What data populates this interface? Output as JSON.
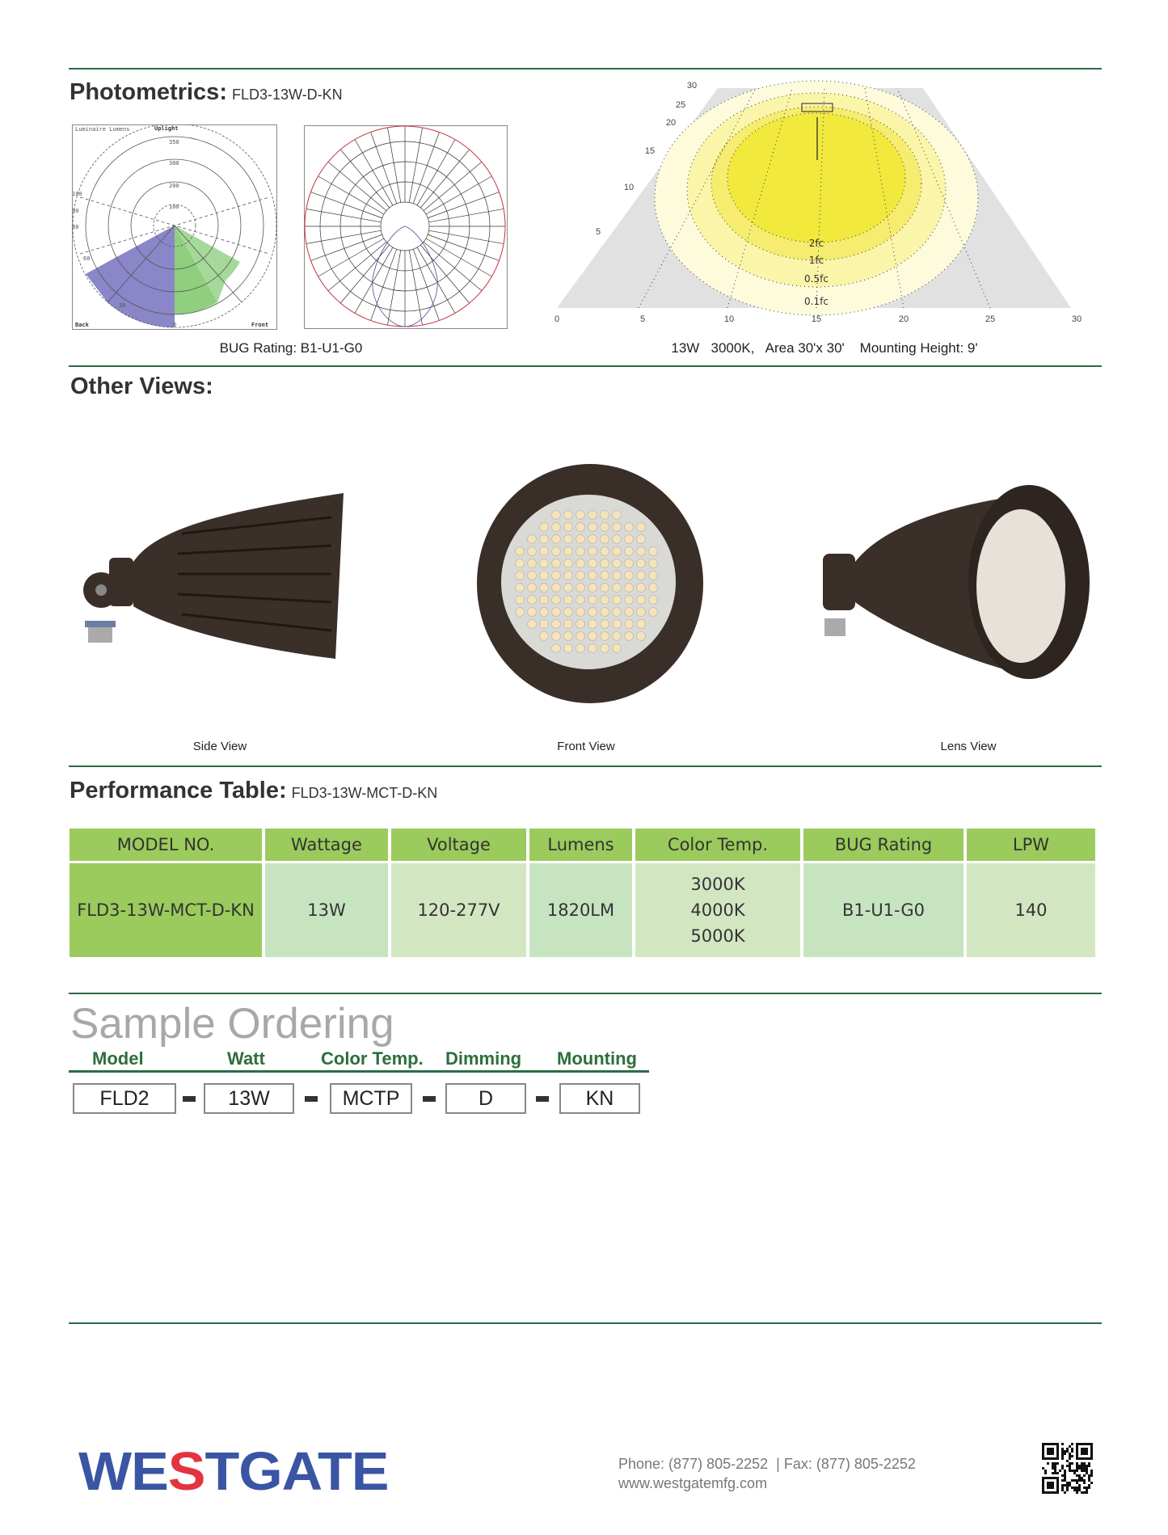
{
  "photometrics": {
    "title": "Photometrics:",
    "model": "FLD3-13W-D-KN",
    "bug_chart": {
      "title": "Luminaire Lumens",
      "uplight_label": "Uplight",
      "ring_labels": [
        "100",
        "200",
        "300",
        "350"
      ],
      "angle_labels": [
        "100",
        "90",
        "80",
        "60",
        "30",
        "0"
      ],
      "back_label": "Back",
      "front_label": "Front",
      "colors": {
        "back": "#8a86c8",
        "front": "#8fcf7e"
      }
    },
    "bug_rating_caption": "BUG Rating: B1-U1-G0",
    "isolux": {
      "x_ticks": [
        "0",
        "5",
        "10",
        "15",
        "20",
        "25",
        "30"
      ],
      "y_ticks": [
        "5",
        "10",
        "15",
        "20",
        "25",
        "30"
      ],
      "contours": [
        "2fc",
        "1fc",
        "0.5fc",
        "0.1fc"
      ],
      "caption": "13W   3000K,   Area 30'x 30'    Mounting Height: 9'"
    }
  },
  "other_views": {
    "title": "Other Views:",
    "views": [
      {
        "caption": "Side View"
      },
      {
        "caption": "Front View"
      },
      {
        "caption": "Lens View"
      }
    ]
  },
  "performance": {
    "title": "Performance Table:",
    "model": "FLD3-13W-MCT-D-KN",
    "headers": [
      "MODEL NO.",
      "Wattage",
      "Voltage",
      "Lumens",
      "Color Temp.",
      "BUG Rating",
      "LPW"
    ],
    "row": {
      "model": "FLD3-13W-MCT-D-KN",
      "wattage": "13W",
      "voltage": "120-277V",
      "lumens": "1820LM",
      "color_temps": [
        "3000K",
        "4000K",
        "5000K"
      ],
      "bug": "B1-U1-G0",
      "lpw": "140"
    }
  },
  "ordering": {
    "title": "Sample Ordering",
    "labels": [
      "Model",
      "Watt",
      "Color Temp.",
      "Dimming",
      "Mounting"
    ],
    "values": [
      "FLD2",
      "13W",
      "MCTP",
      "D",
      "KN"
    ]
  },
  "footer": {
    "logo": "WESTGATE",
    "phone": "Phone: (877) 805-2252  | Fax: (877) 805-2252",
    "website": "www.westgatemfg.com",
    "colors": {
      "logo_blue": "#3a55a4",
      "logo_red": "#e2343f"
    }
  }
}
